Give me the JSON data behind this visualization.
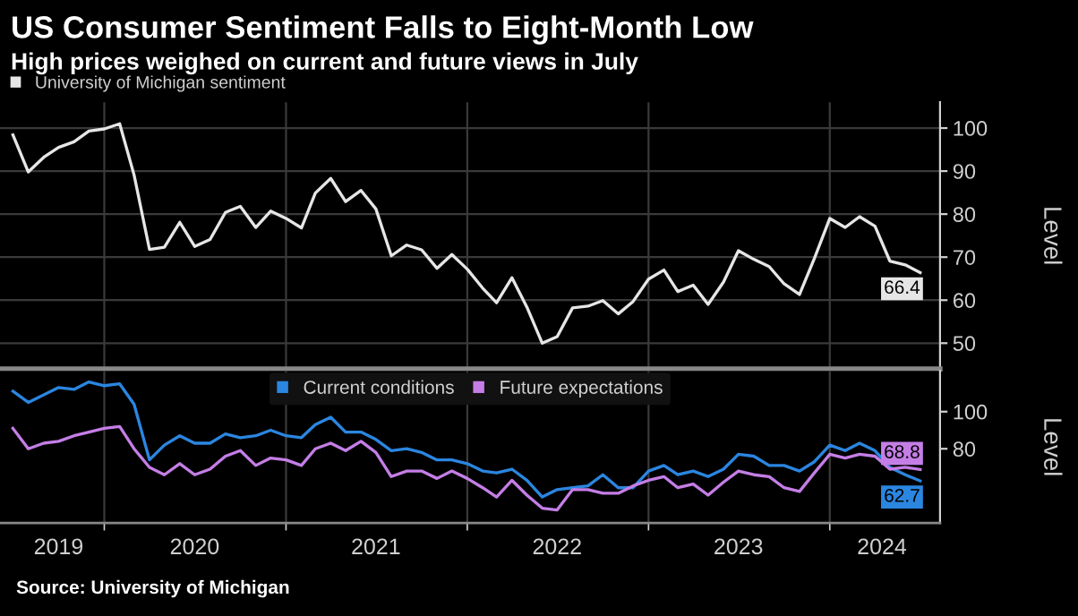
{
  "chart_data": [
    {
      "type": "line",
      "title": "US Consumer Sentiment Falls to Eight-Month Low",
      "subtitle": "High prices weighed on current and future views in July",
      "ylabel": "Level",
      "x": [
        "2019-07",
        "2019-08",
        "2019-09",
        "2019-10",
        "2019-11",
        "2019-12",
        "2020-01",
        "2020-02",
        "2020-03",
        "2020-04",
        "2020-05",
        "2020-06",
        "2020-07",
        "2020-08",
        "2020-09",
        "2020-10",
        "2020-11",
        "2020-12",
        "2021-01",
        "2021-02",
        "2021-03",
        "2021-04",
        "2021-05",
        "2021-06",
        "2021-07",
        "2021-08",
        "2021-09",
        "2021-10",
        "2021-11",
        "2021-12",
        "2022-01",
        "2022-02",
        "2022-03",
        "2022-04",
        "2022-05",
        "2022-06",
        "2022-07",
        "2022-08",
        "2022-09",
        "2022-10",
        "2022-11",
        "2022-12",
        "2023-01",
        "2023-02",
        "2023-03",
        "2023-04",
        "2023-05",
        "2023-06",
        "2023-07",
        "2023-08",
        "2023-09",
        "2023-10",
        "2023-11",
        "2023-12",
        "2024-01",
        "2024-02",
        "2024-03",
        "2024-04",
        "2024-05",
        "2024-06",
        "2024-07"
      ],
      "series": [
        {
          "name": "University of Michigan sentiment",
          "color": "#e6e6e6",
          "values": [
            98.4,
            89.8,
            93.2,
            95.5,
            96.8,
            99.3,
            99.8,
            101.0,
            89.1,
            71.8,
            72.3,
            78.1,
            72.5,
            74.1,
            80.4,
            81.8,
            76.9,
            80.7,
            79.0,
            76.8,
            84.9,
            88.3,
            82.9,
            85.5,
            81.2,
            70.3,
            72.8,
            71.7,
            67.4,
            70.6,
            67.2,
            62.8,
            59.4,
            65.2,
            58.4,
            50.0,
            51.5,
            58.2,
            58.6,
            59.9,
            56.8,
            59.7,
            64.9,
            67.0,
            62.0,
            63.5,
            59.0,
            64.2,
            71.5,
            69.5,
            67.8,
            63.8,
            61.3,
            69.7,
            79.0,
            76.9,
            79.4,
            77.2,
            69.1,
            68.2,
            66.4
          ],
          "value_labels": [
            null,
            null,
            null,
            null,
            null,
            null,
            null,
            null,
            null,
            null,
            null,
            null,
            null,
            null,
            null,
            null,
            null,
            null,
            null,
            null,
            null,
            null,
            null,
            null,
            null,
            null,
            null,
            null,
            null,
            null,
            null,
            null,
            null,
            null,
            null,
            null,
            null,
            null,
            null,
            null,
            null,
            null,
            null,
            null,
            null,
            null,
            null,
            null,
            null,
            null,
            null,
            null,
            null,
            null,
            null,
            null,
            null,
            null,
            null,
            null,
            "66.4"
          ]
        }
      ],
      "xlim": [
        "2019-06-05",
        "2024-08-10"
      ],
      "xticks": [
        {
          "value": "2020-01-01",
          "label": null
        },
        {
          "value": "2021-01-01",
          "label": null
        },
        {
          "value": "2022-01-01",
          "label": null
        },
        {
          "value": "2023-01-01",
          "label": null
        },
        {
          "value": "2024-01-01",
          "label": null
        }
      ],
      "ylim": [
        44,
        106
      ],
      "yticks": [
        50,
        60,
        70,
        80,
        90,
        100
      ],
      "tick_labels": "y",
      "grid": true,
      "legend": "top left",
      "line_style": "solid",
      "marker": "none"
    },
    {
      "type": "line",
      "ylabel": "Level",
      "x": [
        "2019-07",
        "2019-08",
        "2019-09",
        "2019-10",
        "2019-11",
        "2019-12",
        "2020-01",
        "2020-02",
        "2020-03",
        "2020-04",
        "2020-05",
        "2020-06",
        "2020-07",
        "2020-08",
        "2020-09",
        "2020-10",
        "2020-11",
        "2020-12",
        "2021-01",
        "2021-02",
        "2021-03",
        "2021-04",
        "2021-05",
        "2021-06",
        "2021-07",
        "2021-08",
        "2021-09",
        "2021-10",
        "2021-11",
        "2021-12",
        "2022-01",
        "2022-02",
        "2022-03",
        "2022-04",
        "2022-05",
        "2022-06",
        "2022-07",
        "2022-08",
        "2022-09",
        "2022-10",
        "2022-11",
        "2022-12",
        "2023-01",
        "2023-02",
        "2023-03",
        "2023-04",
        "2023-05",
        "2023-06",
        "2023-07",
        "2023-08",
        "2023-09",
        "2023-10",
        "2023-11",
        "2023-12",
        "2024-01",
        "2024-02",
        "2024-03",
        "2024-04",
        "2024-05",
        "2024-06",
        "2024-07"
      ],
      "series": [
        {
          "name": "Current conditions",
          "color": "#2b86e0",
          "values": [
            111,
            105,
            109,
            113,
            112,
            116,
            114,
            115,
            104,
            74,
            82,
            87,
            83,
            83,
            88,
            86,
            87,
            90,
            87,
            86,
            93,
            97,
            89,
            89,
            85,
            79,
            80,
            78,
            74,
            74,
            72,
            68,
            67,
            69,
            63,
            54,
            58,
            59,
            60,
            66,
            59,
            59,
            68,
            71,
            66,
            68,
            65,
            69,
            77,
            76,
            71,
            71,
            68,
            73,
            82,
            79,
            83,
            79,
            70,
            66,
            62.7
          ],
          "value_labels": [
            null,
            null,
            null,
            null,
            null,
            null,
            null,
            null,
            null,
            null,
            null,
            null,
            null,
            null,
            null,
            null,
            null,
            null,
            null,
            null,
            null,
            null,
            null,
            null,
            null,
            null,
            null,
            null,
            null,
            null,
            null,
            null,
            null,
            null,
            null,
            null,
            null,
            null,
            null,
            null,
            null,
            null,
            null,
            null,
            null,
            null,
            null,
            null,
            null,
            null,
            null,
            null,
            null,
            null,
            null,
            null,
            null,
            null,
            null,
            null,
            "62.7"
          ]
        },
        {
          "name": "Future expectations",
          "color": "#c47ee6",
          "values": [
            91,
            80,
            83,
            84,
            87,
            89,
            91,
            92,
            80,
            70,
            66,
            72,
            66,
            69,
            76,
            79,
            71,
            75,
            74,
            71,
            80,
            83,
            79,
            84,
            78,
            65,
            68,
            68,
            64,
            68,
            64,
            59,
            54,
            63,
            55,
            48,
            47,
            58,
            58,
            56,
            56,
            60,
            63,
            65,
            59,
            61,
            55,
            62,
            68,
            66,
            65,
            59,
            57,
            67,
            77,
            75,
            77,
            76,
            69,
            70,
            68.8
          ],
          "value_labels": [
            null,
            null,
            null,
            null,
            null,
            null,
            null,
            null,
            null,
            null,
            null,
            null,
            null,
            null,
            null,
            null,
            null,
            null,
            null,
            null,
            null,
            null,
            null,
            null,
            null,
            null,
            null,
            null,
            null,
            null,
            null,
            null,
            null,
            null,
            null,
            null,
            null,
            null,
            null,
            null,
            null,
            null,
            null,
            null,
            null,
            null,
            null,
            null,
            null,
            null,
            null,
            null,
            null,
            null,
            null,
            null,
            null,
            null,
            null,
            null,
            "68.8"
          ]
        }
      ],
      "xlim": [
        "2019-06-05",
        "2024-08-10"
      ],
      "xticks": [
        {
          "value": "2019-10-01",
          "label": "2019"
        },
        {
          "value": "2020-01-01",
          "label": null
        },
        {
          "value": "2020-07-01",
          "label": "2020"
        },
        {
          "value": "2021-01-01",
          "label": null
        },
        {
          "value": "2021-07-01",
          "label": "2021"
        },
        {
          "value": "2022-01-01",
          "label": null
        },
        {
          "value": "2022-07-01",
          "label": "2022"
        },
        {
          "value": "2023-01-01",
          "label": null
        },
        {
          "value": "2023-07-01",
          "label": "2023"
        },
        {
          "value": "2024-01-01",
          "label": null
        },
        {
          "value": "2024-04-15",
          "label": "2024"
        }
      ],
      "ylim": [
        40,
        122
      ],
      "yticks": [
        80,
        100
      ],
      "grid": "x",
      "legend": "top",
      "line_style": "solid",
      "marker": "none",
      "annotations": [
        "Source: University of Michigan"
      ]
    }
  ]
}
